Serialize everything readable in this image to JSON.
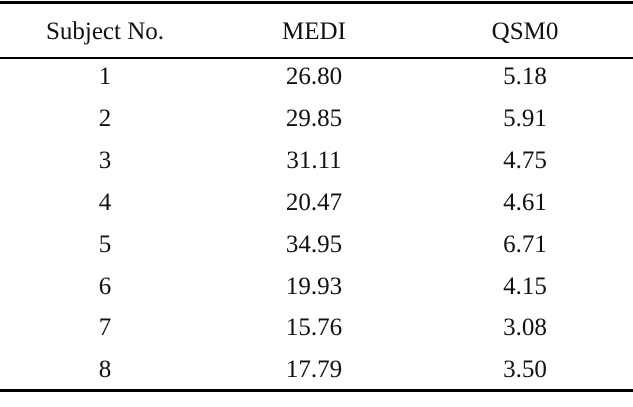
{
  "table": {
    "header": [
      "Subject No.",
      "MEDI",
      "QSM0"
    ],
    "rows": [
      [
        "1",
        "26.80",
        "5.18"
      ],
      [
        "2",
        "29.85",
        "5.91"
      ],
      [
        "3",
        "31.11",
        "4.75"
      ],
      [
        "4",
        "20.47",
        "4.61"
      ],
      [
        "5",
        "34.95",
        "6.71"
      ],
      [
        "6",
        "19.93",
        "4.15"
      ],
      [
        "7",
        "15.76",
        "3.08"
      ],
      [
        "8",
        "17.79",
        "3.50"
      ]
    ]
  }
}
